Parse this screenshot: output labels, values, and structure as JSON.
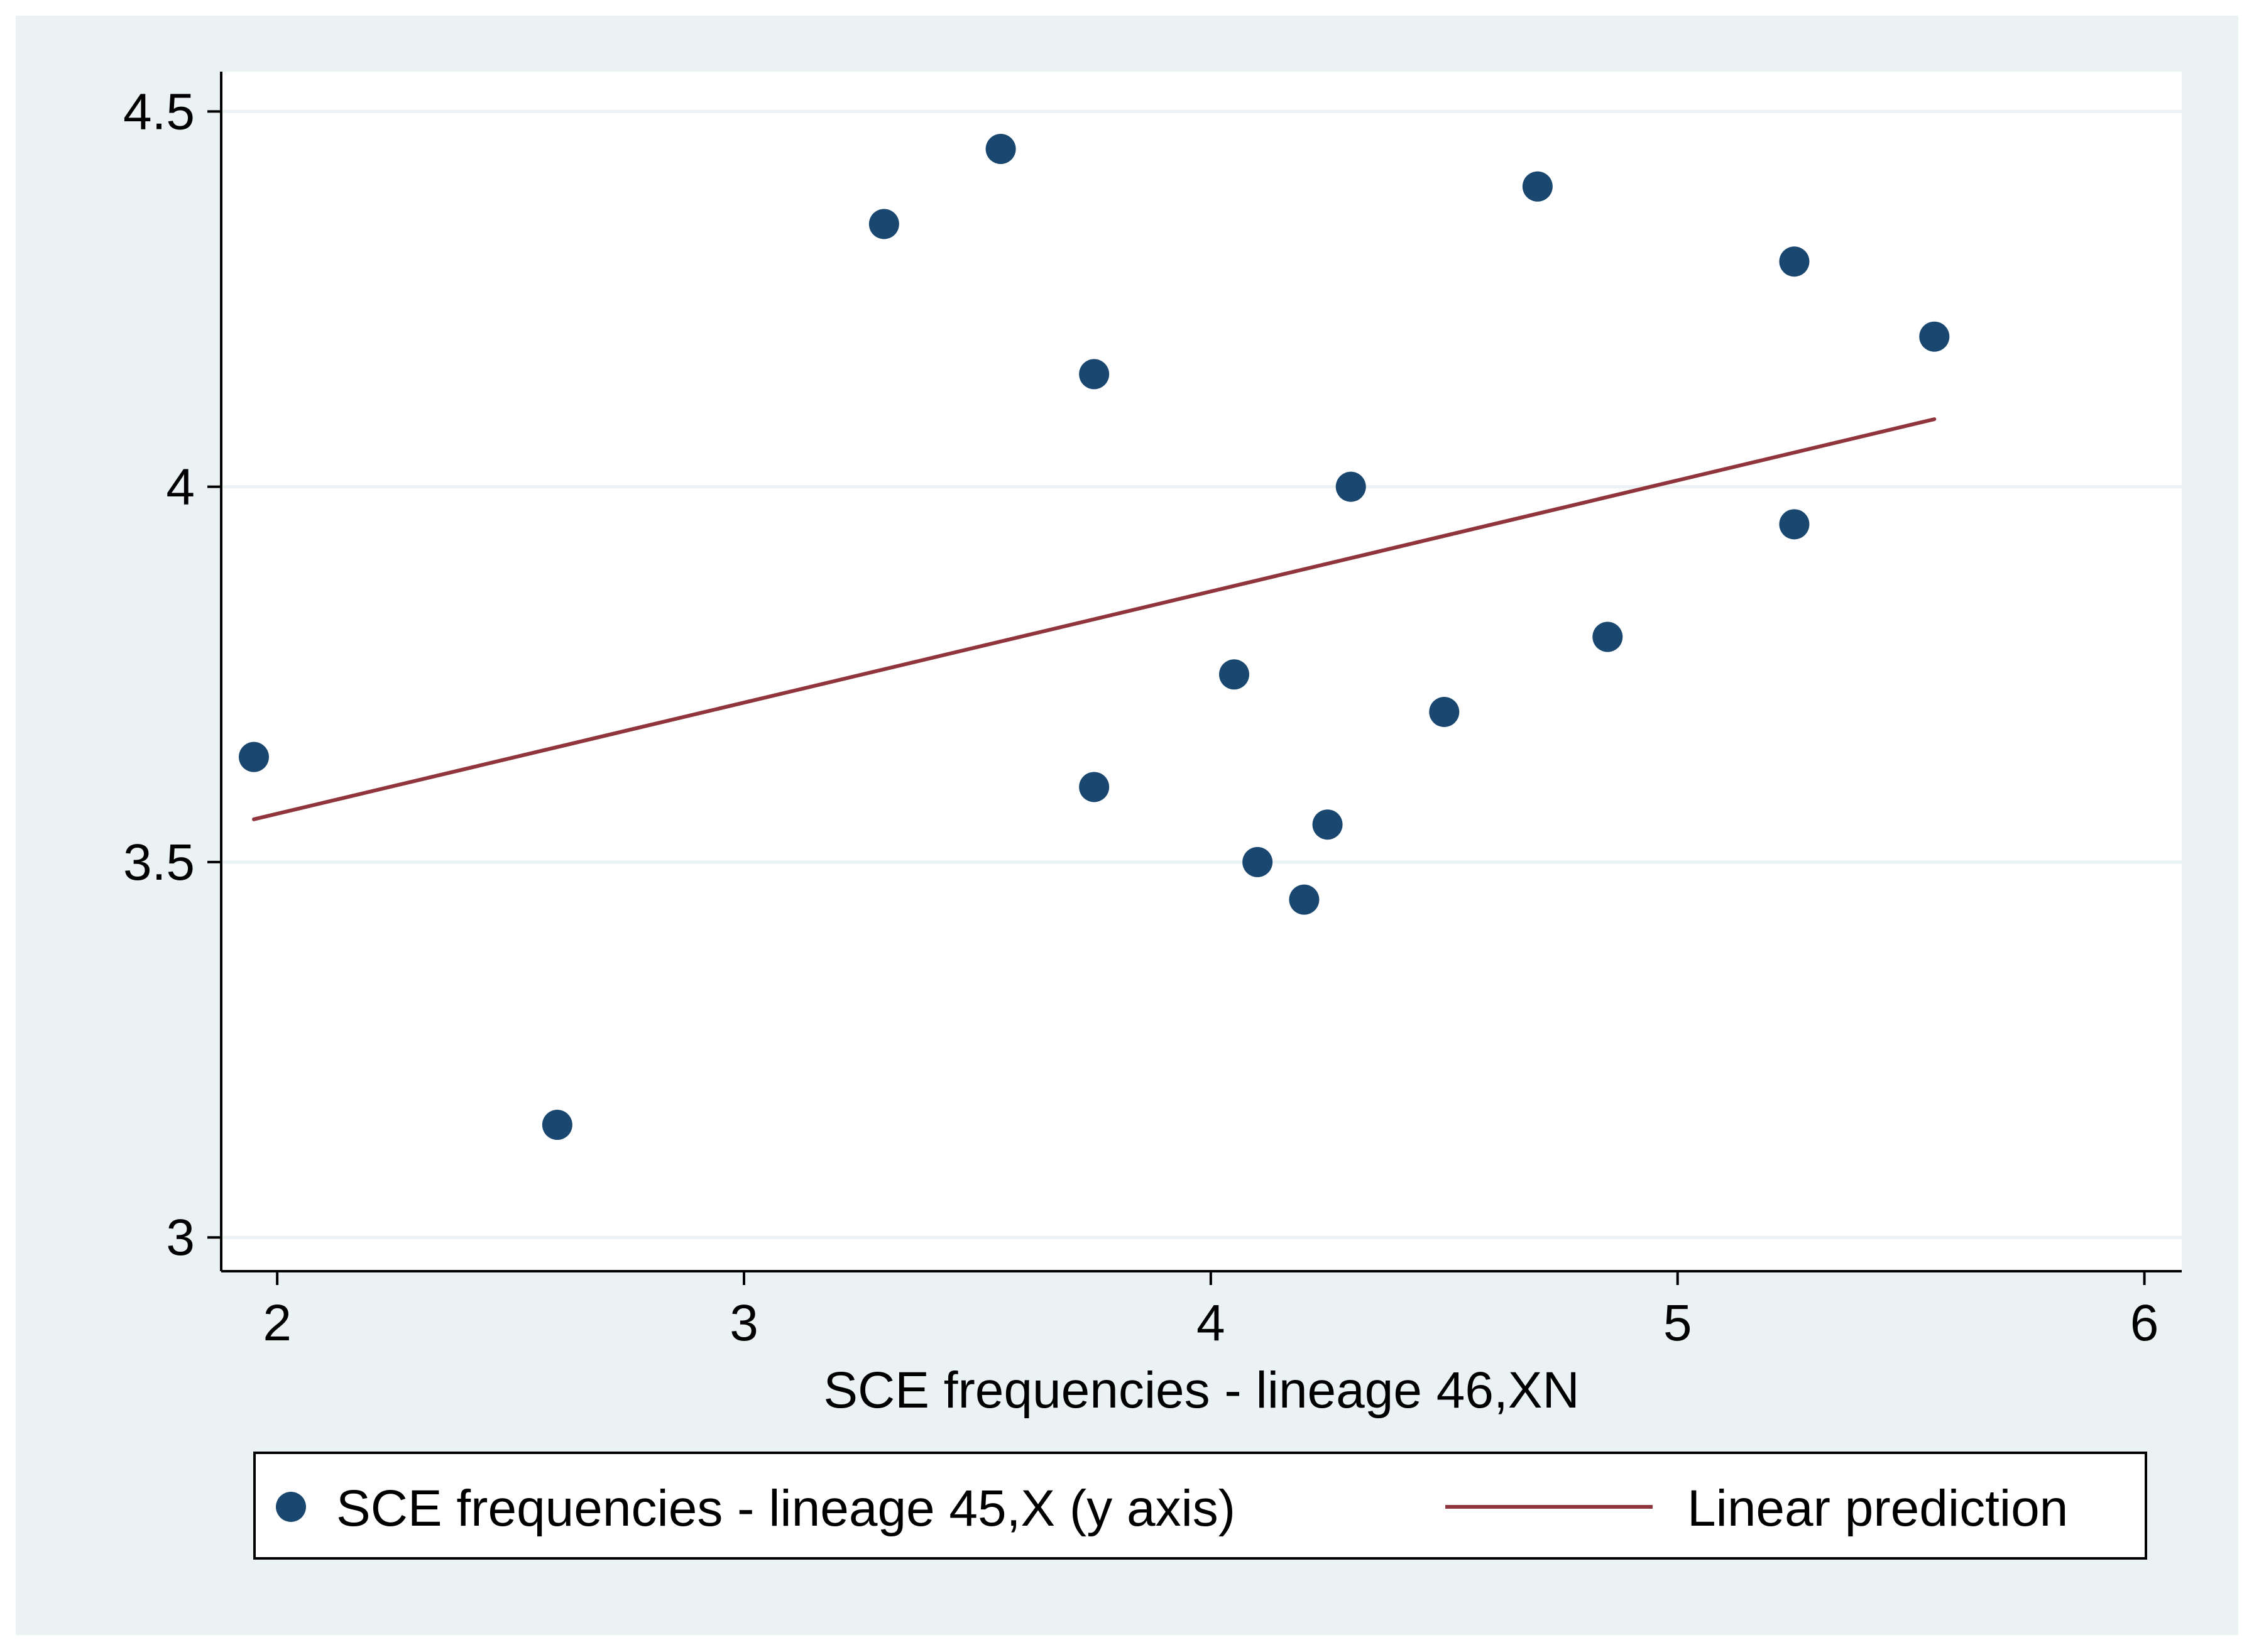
{
  "chart_data": {
    "type": "scatter",
    "title": "",
    "xlabel": "SCE frequencies - lineage 46,XN",
    "ylabel": "",
    "xlim": [
      1.88,
      6.08
    ],
    "ylim": [
      2.955,
      4.553
    ],
    "x_ticks": [
      2,
      3,
      4,
      5,
      6
    ],
    "y_ticks": [
      3,
      3.5,
      4,
      4.5
    ],
    "x_tick_labels": [
      "2",
      "3",
      "4",
      "5",
      "6"
    ],
    "y_tick_labels": [
      "3",
      "3.5",
      "4",
      "4.5"
    ],
    "grid": true,
    "legend_position": "bottom",
    "series": [
      {
        "name": "SCE frequencies - lineage 45,X (y axis)",
        "kind": "scatter",
        "color": "#1a476f",
        "points": [
          {
            "x": 1.95,
            "y": 3.64
          },
          {
            "x": 2.6,
            "y": 3.15
          },
          {
            "x": 3.3,
            "y": 4.35
          },
          {
            "x": 3.55,
            "y": 4.45
          },
          {
            "x": 3.75,
            "y": 4.15
          },
          {
            "x": 3.75,
            "y": 3.6
          },
          {
            "x": 4.05,
            "y": 3.75
          },
          {
            "x": 4.1,
            "y": 3.5
          },
          {
            "x": 4.2,
            "y": 3.45
          },
          {
            "x": 4.25,
            "y": 3.55
          },
          {
            "x": 4.3,
            "y": 4.0
          },
          {
            "x": 4.5,
            "y": 3.7
          },
          {
            "x": 4.7,
            "y": 4.4
          },
          {
            "x": 4.85,
            "y": 3.8
          },
          {
            "x": 5.25,
            "y": 4.3
          },
          {
            "x": 5.25,
            "y": 3.95
          },
          {
            "x": 5.55,
            "y": 4.2
          }
        ]
      },
      {
        "name": "Linear prediction",
        "kind": "line",
        "color": "#90353b",
        "points": [
          {
            "x": 1.95,
            "y": 3.557
          },
          {
            "x": 5.55,
            "y": 4.09
          }
        ]
      }
    ]
  },
  "colors": {
    "outer_background": "#eaf2f3",
    "plot_background": "#ffffff",
    "gridline": "#eaf2f3",
    "axis": "#000000"
  }
}
